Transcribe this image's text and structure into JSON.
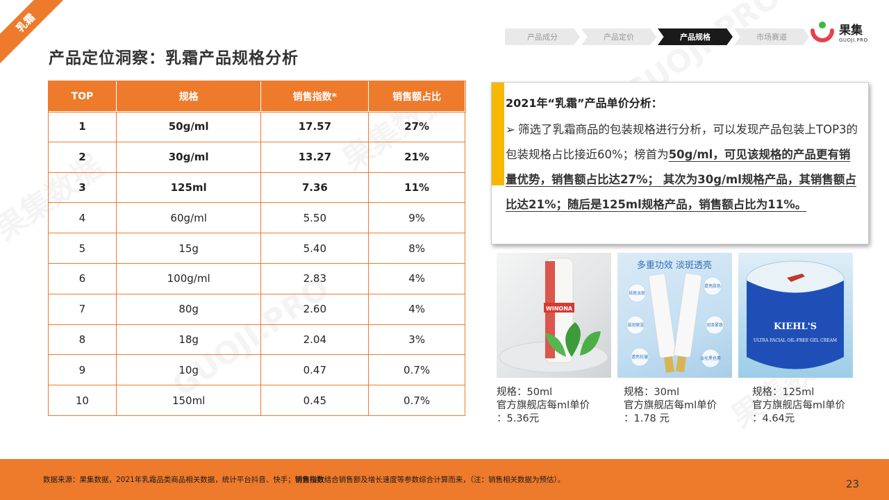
{
  "corner_tag": "乳霜",
  "title": "产品定位洞察：乳霜产品规格分析",
  "breadcrumb": [
    {
      "label": "产品成分",
      "active": false
    },
    {
      "label": "产品定价",
      "active": false
    },
    {
      "label": "产品规格",
      "active": true
    },
    {
      "label": "市场赛道",
      "active": false
    }
  ],
  "logo": {
    "cn": "果集",
    "en": "GUOJI.PRO"
  },
  "watermark": [
    "果集数据",
    "GUOJI.PRO"
  ],
  "table": {
    "headers": [
      "TOP",
      "规格",
      "销售指数*",
      "销售额占比"
    ],
    "rows": [
      [
        "1",
        "50g/ml",
        "17.57",
        "27%"
      ],
      [
        "2",
        "30g/ml",
        "13.27",
        "21%"
      ],
      [
        "3",
        "125ml",
        "7.36",
        "11%"
      ],
      [
        "4",
        "60g/ml",
        "5.50",
        "9%"
      ],
      [
        "5",
        "15g",
        "5.40",
        "8%"
      ],
      [
        "6",
        "100g/ml",
        "2.83",
        "4%"
      ],
      [
        "7",
        "80g",
        "2.60",
        "4%"
      ],
      [
        "8",
        "18g",
        "2.04",
        "3%"
      ],
      [
        "9",
        "10g",
        "0.47",
        "0.7%"
      ],
      [
        "10",
        "150ml",
        "0.45",
        "0.7%"
      ]
    ]
  },
  "analysis": {
    "title": "2021年“乳霜”产品单价分析：",
    "arrow": "➢",
    "text_plain": "筛选了乳霜商品的包装规格进行分析，可以发现产品包装上TOP3的包装规格占比接近60%；榜首为",
    "text_highlight": "50g/ml，可见该规格的产品更有销量优势，销售额占比达27%； 其次为30g/ml规格产品，其销售额占比达21%；随后是125ml规格产品，销售额占比为11%。"
  },
  "products": [
    {
      "spec": "规格：50ml",
      "line2": "官方旗舰店每ml单价",
      "line3": "：5.36元",
      "brand_text": "WINONA"
    },
    {
      "spec": "规格：30ml",
      "line2": "官方旗舰店每ml单价",
      "line3": "：1.78 元",
      "banner": "多重功效 淡斑透亮",
      "bubbles": [
        "祛斑淡斑",
        "提亮肤色",
        "滋润保湿",
        "润泽紧致",
        "透亮抗皱",
        "淡化黑色素"
      ]
    },
    {
      "spec": "规格：125ml",
      "line2": "官方旗舰店每ml单价",
      "line3": "：4.64元",
      "brand_text": "KIEHL'S",
      "jar_text": "ULTRA FACIAL OIL-FREE GEL CREAM"
    }
  ],
  "footer": {
    "prefix": "数据来源：果集数据，2021年乳霜品类商品相关数据，统计平台抖音、快手；",
    "bold": "销售指数",
    "suffix": "结合销售额及增长速度等参数综合计算而来，（注：销售相关数据为预估）。",
    "page": "23"
  },
  "colors": {
    "accent": "#ee7a2c",
    "highlight_bar": "#f6b800",
    "logo_green": "#3dbb3d",
    "logo_red": "#e8414e"
  }
}
